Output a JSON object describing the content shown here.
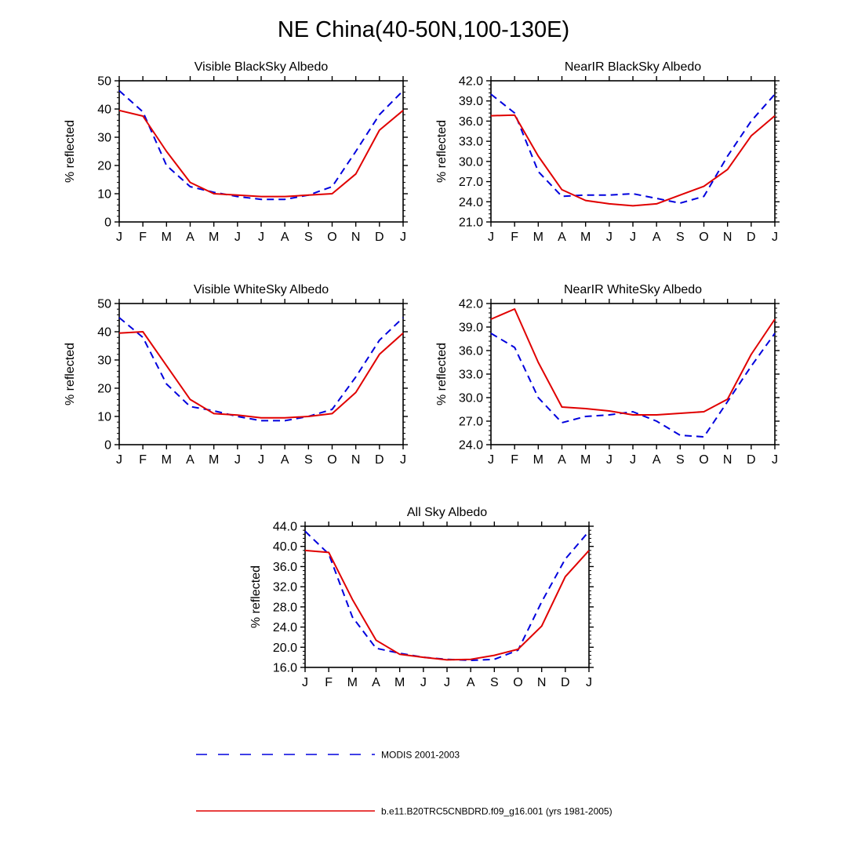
{
  "figure": {
    "title": "NE China(40-50N,100-130E)"
  },
  "legend": [
    {
      "label": "MODIS 2001-2003",
      "color": "#0000dd",
      "style": "dashed"
    },
    {
      "label": "b.e11.B20TRC5CNBDRD.f09_g16.001 (yrs 1981-2005)",
      "color": "#e00000",
      "style": "solid"
    }
  ],
  "chart_data": [
    {
      "type": "line",
      "title": "Visible BlackSky Albedo",
      "ylabel": "% reflected",
      "xlabel": "",
      "categories": [
        "J",
        "F",
        "M",
        "A",
        "M",
        "J",
        "J",
        "A",
        "S",
        "O",
        "N",
        "D",
        "J"
      ],
      "ylim": [
        0,
        50
      ],
      "yticks": [
        "0",
        "10",
        "20",
        "30",
        "40",
        "50"
      ],
      "series": [
        {
          "name": "MODIS 2001-2003",
          "color": "#0000dd",
          "style": "dashed",
          "values": [
            46.5,
            39,
            20,
            12.5,
            10.5,
            9,
            8,
            8,
            9.5,
            12.5,
            25,
            38,
            46.5
          ]
        },
        {
          "name": "b.e11.B20TRC5CNBDRD.f09_g16.001 (yrs 1981-2005)",
          "color": "#e00000",
          "style": "solid",
          "values": [
            39.5,
            37.5,
            25,
            14,
            10,
            9.5,
            9,
            9,
            9.5,
            10,
            17,
            32.5,
            39.5
          ]
        }
      ]
    },
    {
      "type": "line",
      "title": "NearIR BlackSky Albedo",
      "ylabel": "% reflected",
      "xlabel": "",
      "categories": [
        "J",
        "F",
        "M",
        "A",
        "M",
        "J",
        "J",
        "A",
        "S",
        "O",
        "N",
        "D",
        "J"
      ],
      "ylim": [
        21,
        42
      ],
      "yticks": [
        "21.0",
        "24.0",
        "27.0",
        "30.0",
        "33.0",
        "36.0",
        "39.0",
        "42.0"
      ],
      "series": [
        {
          "name": "MODIS 2001-2003",
          "color": "#0000dd",
          "style": "dashed",
          "values": [
            40.0,
            37.2,
            28.5,
            24.8,
            25.0,
            25.0,
            25.2,
            24.5,
            23.8,
            24.8,
            30.8,
            36.0,
            40.0
          ]
        },
        {
          "name": "b.e11.B20TRC5CNBDRD.f09_g16.001 (yrs 1981-2005)",
          "color": "#e00000",
          "style": "solid",
          "values": [
            36.8,
            36.9,
            30.8,
            25.8,
            24.2,
            23.7,
            23.4,
            23.7,
            25.0,
            26.3,
            28.8,
            33.8,
            36.8
          ]
        }
      ]
    },
    {
      "type": "line",
      "title": "Visible WhiteSky Albedo",
      "ylabel": "% reflected",
      "xlabel": "",
      "categories": [
        "J",
        "F",
        "M",
        "A",
        "M",
        "J",
        "J",
        "A",
        "S",
        "O",
        "N",
        "D",
        "J"
      ],
      "ylim": [
        0,
        50
      ],
      "yticks": [
        "0",
        "10",
        "20",
        "30",
        "40",
        "50"
      ],
      "series": [
        {
          "name": "MODIS 2001-2003",
          "color": "#0000dd",
          "style": "dashed",
          "values": [
            45,
            38,
            21.5,
            13.5,
            12,
            10,
            8.5,
            8.5,
            10,
            12.5,
            24,
            37,
            45
          ]
        },
        {
          "name": "b.e11.B20TRC5CNBDRD.f09_g16.001 (yrs 1981-2005)",
          "color": "#e00000",
          "style": "solid",
          "values": [
            39.5,
            40,
            28,
            16,
            11,
            10.5,
            9.5,
            9.5,
            10,
            11,
            18.5,
            32,
            39.5
          ]
        }
      ]
    },
    {
      "type": "line",
      "title": "NearIR WhiteSky Albedo",
      "ylabel": "% reflected",
      "xlabel": "",
      "categories": [
        "J",
        "F",
        "M",
        "A",
        "M",
        "J",
        "J",
        "A",
        "S",
        "O",
        "N",
        "D",
        "J"
      ],
      "ylim": [
        24,
        42
      ],
      "yticks": [
        "24.0",
        "27.0",
        "30.0",
        "33.0",
        "36.0",
        "39.0",
        "42.0"
      ],
      "series": [
        {
          "name": "MODIS 2001-2003",
          "color": "#0000dd",
          "style": "dashed",
          "values": [
            38.2,
            36.4,
            30.0,
            26.8,
            27.6,
            27.8,
            28.2,
            27.0,
            25.2,
            25.0,
            29.5,
            34.0,
            38.2
          ]
        },
        {
          "name": "b.e11.B20TRC5CNBDRD.f09_g16.001 (yrs 1981-2005)",
          "color": "#e00000",
          "style": "solid",
          "values": [
            40.0,
            41.3,
            34.5,
            28.8,
            28.6,
            28.3,
            27.8,
            27.8,
            28.0,
            28.2,
            29.8,
            35.5,
            40.0
          ]
        }
      ]
    },
    {
      "type": "line",
      "title": "All Sky Albedo",
      "ylabel": "% reflected",
      "xlabel": "",
      "categories": [
        "J",
        "F",
        "M",
        "A",
        "M",
        "J",
        "J",
        "A",
        "S",
        "O",
        "N",
        "D",
        "J"
      ],
      "ylim": [
        16,
        44
      ],
      "yticks": [
        "16.0",
        "20.0",
        "24.0",
        "28.0",
        "32.0",
        "36.0",
        "40.0",
        "44.0"
      ],
      "series": [
        {
          "name": "MODIS 2001-2003",
          "color": "#0000dd",
          "style": "dashed",
          "values": [
            43.0,
            38.5,
            26.0,
            19.8,
            18.8,
            18.0,
            17.6,
            17.4,
            17.6,
            19.4,
            29.0,
            37.5,
            43.0
          ]
        },
        {
          "name": "b.e11.B20TRC5CNBDRD.f09_g16.001 (yrs 1981-2005)",
          "color": "#e00000",
          "style": "solid",
          "values": [
            39.2,
            38.8,
            29.5,
            21.4,
            18.6,
            18.0,
            17.5,
            17.6,
            18.4,
            19.6,
            24.2,
            34.0,
            39.2
          ]
        }
      ]
    }
  ]
}
